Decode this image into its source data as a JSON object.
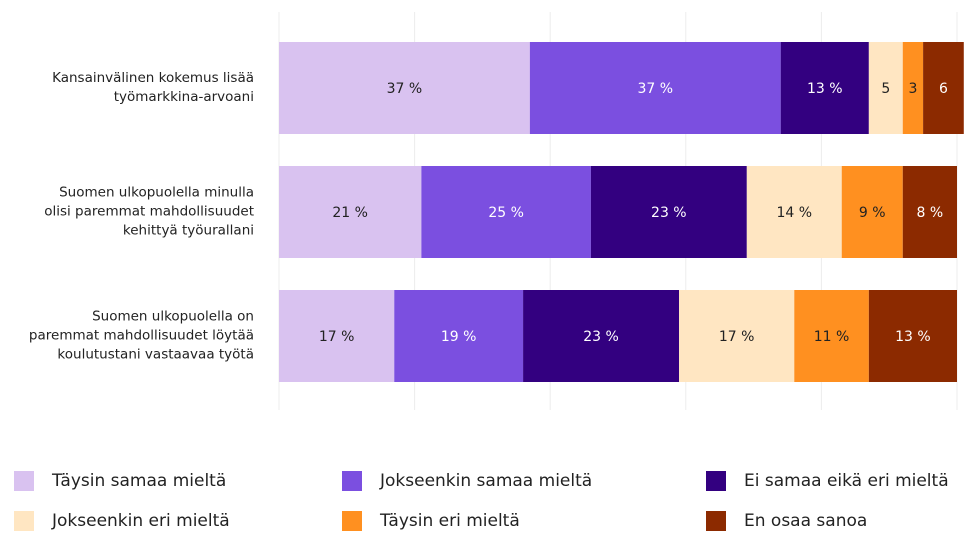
{
  "chart_data": {
    "type": "stacked_barh",
    "categories": [
      "Kansainvälinen kokemus lisää\ntyömarkkina-arvoani",
      "Suomen ulkopuolella minulla\nolisi paremmat mahdollisuudet\nkehittyä työurallani",
      "Suomen ulkopuolella on\nparemmat mahdollisuudet löytää\nkoulutustani vastaavaa työtä"
    ],
    "series": [
      {
        "name": "Täysin samaa mieltä",
        "color": "#d9c2f0",
        "values": [
          37,
          21,
          17
        ],
        "value_labels": [
          "37 %",
          "21 %",
          "17 %"
        ]
      },
      {
        "name": "Jokseenkin samaa mieltä",
        "color": "#7b4fe0",
        "values": [
          37,
          25,
          19
        ],
        "value_labels": [
          "37 %",
          "25 %",
          "19 %"
        ]
      },
      {
        "name": "Ei samaa eikä eri mieltä",
        "color": "#330080",
        "values": [
          13,
          23,
          23
        ],
        "value_labels": [
          "13 %",
          "23 %",
          "23 %"
        ]
      },
      {
        "name": "Jokseenkin eri mieltä",
        "color": "#ffe6c2",
        "values": [
          5,
          14,
          17
        ],
        "value_labels": [
          "5",
          "14 %",
          "17 %"
        ]
      },
      {
        "name": "Täysin eri mieltä",
        "color": "#ff9020",
        "values": [
          3,
          9,
          11
        ],
        "value_labels": [
          "3",
          "9 %",
          "11 %"
        ]
      },
      {
        "name": "En osaa sanoa",
        "color": "#8c2a00",
        "values": [
          6,
          8,
          13
        ],
        "value_labels": [
          "6",
          "8 %",
          "13 %"
        ]
      }
    ],
    "xlim": [
      0,
      100
    ],
    "xticks": [
      0,
      20,
      40,
      60,
      80,
      100
    ],
    "grid": true
  }
}
